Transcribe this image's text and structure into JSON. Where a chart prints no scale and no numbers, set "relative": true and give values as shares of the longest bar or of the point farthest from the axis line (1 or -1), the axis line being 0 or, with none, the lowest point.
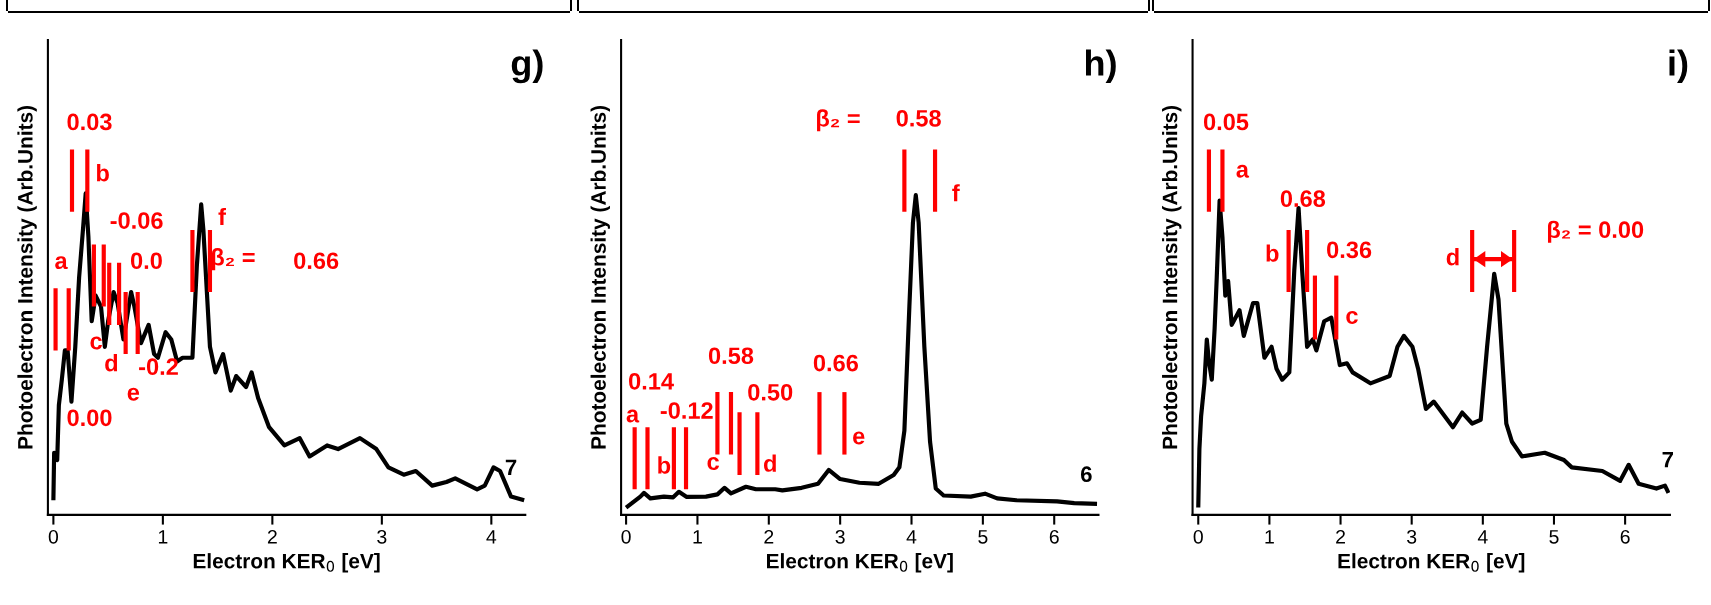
{
  "chart_data": [
    {
      "type": "line",
      "title": "g)",
      "xlabel": "Electron KER$_{0}$ [eV]",
      "ylabel": "Photoelectron Intensity (Arb.Units)",
      "relative": true,
      "tick_labels": "x",
      "xlim": [
        -0.05,
        4.31
      ],
      "xticks": [
        0,
        1,
        2,
        3,
        4
      ],
      "series": [
        {
          "color": "#000000",
          "x": [
            0,
            0.007,
            0.035,
            0.05,
            0.077,
            0.105,
            0.13,
            0.165,
            0.2,
            0.235,
            0.27,
            0.295,
            0.32,
            0.35,
            0.386,
            0.435,
            0.47,
            0.5,
            0.55,
            0.586,
            0.64,
            0.71,
            0.74,
            0.8,
            0.87,
            0.92,
            0.955,
            1.025,
            1.077,
            1.13,
            1.18,
            1.27,
            1.31,
            1.35,
            1.37,
            1.43,
            1.48,
            1.55,
            1.62,
            1.67,
            1.76,
            1.81,
            1.87,
            1.97,
            2.11,
            2.25,
            2.34,
            2.5,
            2.6,
            2.8,
            2.95,
            3.06,
            3.2,
            3.31,
            3.46,
            3.59,
            3.67,
            3.87,
            3.94,
            4.02,
            4.08,
            4.18,
            4.3
          ],
          "values": [
            0.04,
            0.17,
            0.15,
            0.3,
            0.37,
            0.45,
            0.45,
            0.31,
            0.46,
            0.65,
            0.78,
            0.88,
            0.76,
            0.53,
            0.6,
            0.57,
            0.46,
            0.53,
            0.61,
            0.58,
            0.48,
            0.61,
            0.57,
            0.47,
            0.52,
            0.44,
            0.43,
            0.5,
            0.48,
            0.42,
            0.43,
            0.43,
            0.68,
            0.85,
            0.78,
            0.46,
            0.39,
            0.44,
            0.34,
            0.38,
            0.35,
            0.39,
            0.32,
            0.24,
            0.19,
            0.21,
            0.16,
            0.19,
            0.18,
            0.21,
            0.18,
            0.13,
            0.11,
            0.12,
            0.08,
            0.09,
            0.1,
            0.07,
            0.08,
            0.13,
            0.12,
            0.05,
            0.04
          ]
        },
        {
          "color": "#ff0000",
          "x": [
            0.02,
            0.02
          ],
          "values": [
            0.45,
            0.62
          ]
        },
        {
          "color": "#ff0000",
          "x": [
            0.14,
            0.14
          ],
          "values": [
            0.45,
            0.62
          ]
        },
        {
          "color": "#ff0000",
          "x": [
            0.17,
            0.17
          ],
          "values": [
            0.83,
            1.0
          ]
        },
        {
          "color": "#ff0000",
          "x": [
            0.31,
            0.31
          ],
          "values": [
            0.83,
            1.0
          ]
        },
        {
          "color": "#ff0000",
          "x": [
            0.37,
            0.37
          ],
          "values": [
            0.57,
            0.74
          ]
        },
        {
          "color": "#ff0000",
          "x": [
            0.46,
            0.46
          ],
          "values": [
            0.57,
            0.74
          ]
        },
        {
          "color": "#ff0000",
          "x": [
            0.51,
            0.51
          ],
          "values": [
            0.52,
            0.69
          ]
        },
        {
          "color": "#ff0000",
          "x": [
            0.6,
            0.6
          ],
          "values": [
            0.52,
            0.69
          ]
        },
        {
          "color": "#ff0000",
          "x": [
            0.66,
            0.66
          ],
          "values": [
            0.44,
            0.61
          ]
        },
        {
          "color": "#ff0000",
          "x": [
            0.77,
            0.77
          ],
          "values": [
            0.44,
            0.61
          ]
        },
        {
          "color": "#ff0000",
          "x": [
            1.27,
            1.27
          ],
          "values": [
            0.61,
            0.78
          ]
        },
        {
          "color": "#ff0000",
          "x": [
            1.43,
            1.43
          ],
          "values": [
            0.61,
            0.78
          ]
        }
      ],
      "annotations": [
        "0.03",
        "b",
        "-0.06",
        "a",
        "0.0",
        "f",
        "β₂ =",
        "0.66",
        "c",
        "d",
        "-0.2",
        "e",
        "0.00",
        "7"
      ]
    },
    {
      "type": "line",
      "title": "h)",
      "xlabel": "Electron KER$_{0}$ [eV]",
      "ylabel": "Photoelectron Intensity (Arb.Units)",
      "relative": true,
      "tick_labels": "x",
      "xlim": [
        -0.07,
        6.62
      ],
      "xticks": [
        0,
        1,
        2,
        3,
        4,
        5,
        6
      ],
      "series": [
        {
          "color": "#000000",
          "x": [
            0,
            0.1,
            0.2,
            0.25,
            0.34,
            0.53,
            0.66,
            0.74,
            0.85,
            1.12,
            1.28,
            1.38,
            1.47,
            1.68,
            1.82,
            2.09,
            2.19,
            2.46,
            2.69,
            2.84,
            3.0,
            3.27,
            3.54,
            3.75,
            3.83,
            3.9,
            3.97,
            4.02,
            4.06,
            4.1,
            4.18,
            4.26,
            4.34,
            4.45,
            4.83,
            5.03,
            5.2,
            5.47,
            6.04,
            6.28,
            6.6
          ],
          "values": [
            0.02,
            0.035,
            0.05,
            0.06,
            0.045,
            0.05,
            0.048,
            0.063,
            0.049,
            0.05,
            0.056,
            0.074,
            0.059,
            0.077,
            0.07,
            0.07,
            0.067,
            0.074,
            0.085,
            0.123,
            0.098,
            0.088,
            0.085,
            0.109,
            0.13,
            0.23,
            0.57,
            0.8,
            0.875,
            0.8,
            0.46,
            0.2,
            0.072,
            0.053,
            0.05,
            0.058,
            0.045,
            0.04,
            0.037,
            0.032,
            0.03
          ]
        },
        {
          "color": "#ff0000",
          "x": [
            0.12,
            0.12
          ],
          "values": [
            0.07,
            0.24
          ]
        },
        {
          "color": "#ff0000",
          "x": [
            0.3,
            0.3
          ],
          "values": [
            0.07,
            0.24
          ]
        },
        {
          "color": "#ff0000",
          "x": [
            0.67,
            0.67
          ],
          "values": [
            0.07,
            0.24
          ]
        },
        {
          "color": "#ff0000",
          "x": [
            0.84,
            0.84
          ],
          "values": [
            0.07,
            0.24
          ]
        },
        {
          "color": "#ff0000",
          "x": [
            1.28,
            1.28
          ],
          "values": [
            0.165,
            0.336
          ]
        },
        {
          "color": "#ff0000",
          "x": [
            1.47,
            1.47
          ],
          "values": [
            0.165,
            0.336
          ]
        },
        {
          "color": "#ff0000",
          "x": [
            1.59,
            1.59
          ],
          "values": [
            0.109,
            0.281
          ]
        },
        {
          "color": "#ff0000",
          "x": [
            1.84,
            1.84
          ],
          "values": [
            0.109,
            0.281
          ]
        },
        {
          "color": "#ff0000",
          "x": [
            2.71,
            2.71
          ],
          "values": [
            0.165,
            0.336
          ]
        },
        {
          "color": "#ff0000",
          "x": [
            3.06,
            3.06
          ],
          "values": [
            0.165,
            0.336
          ]
        },
        {
          "color": "#ff0000",
          "x": [
            3.9,
            3.9
          ],
          "values": [
            0.83,
            1.0
          ]
        },
        {
          "color": "#ff0000",
          "x": [
            4.33,
            4.33
          ],
          "values": [
            0.83,
            1.0
          ]
        }
      ],
      "annotations": [
        "β₂ =",
        "0.58",
        "f",
        "0.58",
        "0.66",
        "0.14",
        "0.50",
        "a",
        "-0.12",
        "e",
        "b",
        "c",
        "d",
        "6"
      ]
    },
    {
      "type": "line",
      "title": "i)",
      "xlabel": "Electron KER$_{0}$ [eV]",
      "ylabel": "Photoelectron Intensity (Arb.Units)",
      "relative": true,
      "tick_labels": "x",
      "xlim": [
        -0.08,
        6.63
      ],
      "xticks": [
        0,
        1,
        2,
        3,
        4,
        5,
        6
      ],
      "series": [
        {
          "color": "#000000",
          "x": [
            0,
            0.016,
            0.04,
            0.086,
            0.12,
            0.15,
            0.19,
            0.23,
            0.26,
            0.3,
            0.34,
            0.38,
            0.42,
            0.47,
            0.58,
            0.64,
            0.77,
            0.83,
            0.91,
            0.93,
            1.03,
            1.1,
            1.18,
            1.28,
            1.35,
            1.41,
            1.46,
            1.53,
            1.61,
            1.66,
            1.77,
            1.87,
            1.99,
            2.09,
            2.17,
            2.42,
            2.69,
            2.8,
            2.89,
            3.01,
            3.09,
            3.2,
            3.31,
            3.58,
            3.71,
            3.85,
            3.97,
            4.06,
            4.16,
            4.22,
            4.33,
            4.41,
            4.55,
            4.87,
            5.14,
            5.25,
            5.68,
            5.93,
            6.05,
            6.19,
            6.44,
            6.56,
            6.61
          ],
          "values": [
            0.02,
            0.18,
            0.27,
            0.36,
            0.48,
            0.42,
            0.37,
            0.51,
            0.65,
            0.86,
            0.76,
            0.6,
            0.64,
            0.52,
            0.56,
            0.49,
            0.58,
            0.58,
            0.46,
            0.43,
            0.46,
            0.4,
            0.37,
            0.39,
            0.67,
            0.84,
            0.67,
            0.46,
            0.48,
            0.45,
            0.53,
            0.54,
            0.41,
            0.415,
            0.39,
            0.36,
            0.38,
            0.46,
            0.49,
            0.46,
            0.4,
            0.29,
            0.31,
            0.24,
            0.28,
            0.25,
            0.26,
            0.46,
            0.66,
            0.59,
            0.25,
            0.2,
            0.16,
            0.17,
            0.15,
            0.13,
            0.12,
            0.093,
            0.137,
            0.085,
            0.072,
            0.08,
            0.06
          ]
        },
        {
          "color": "#ff0000",
          "x": [
            0.15,
            0.15
          ],
          "values": [
            0.83,
            1.0
          ]
        },
        {
          "color": "#ff0000",
          "x": [
            0.34,
            0.34
          ],
          "values": [
            0.83,
            1.0
          ]
        },
        {
          "color": "#ff0000",
          "x": [
            1.27,
            1.27
          ],
          "values": [
            0.61,
            0.78
          ]
        },
        {
          "color": "#ff0000",
          "x": [
            1.53,
            1.53
          ],
          "values": [
            0.61,
            0.78
          ]
        },
        {
          "color": "#ff0000",
          "x": [
            1.64,
            1.64
          ],
          "values": [
            0.48,
            0.655
          ]
        },
        {
          "color": "#ff0000",
          "x": [
            1.94,
            1.94
          ],
          "values": [
            0.48,
            0.655
          ]
        },
        {
          "color": "#ff0000",
          "x": [
            3.85,
            3.85
          ],
          "values": [
            0.61,
            0.78
          ]
        },
        {
          "color": "#ff0000",
          "x": [
            4.44,
            4.44
          ],
          "values": [
            0.61,
            0.78
          ]
        },
        {
          "color": "#ff0000",
          "x": [
            3.87,
            4.42
          ],
          "values": [
            0.7,
            0.7
          ]
        }
      ],
      "annotations": [
        "0.05",
        "a",
        "0.68",
        "b",
        "0.36",
        "d",
        "β₂ = 0.00",
        "c",
        "7"
      ]
    }
  ]
}
